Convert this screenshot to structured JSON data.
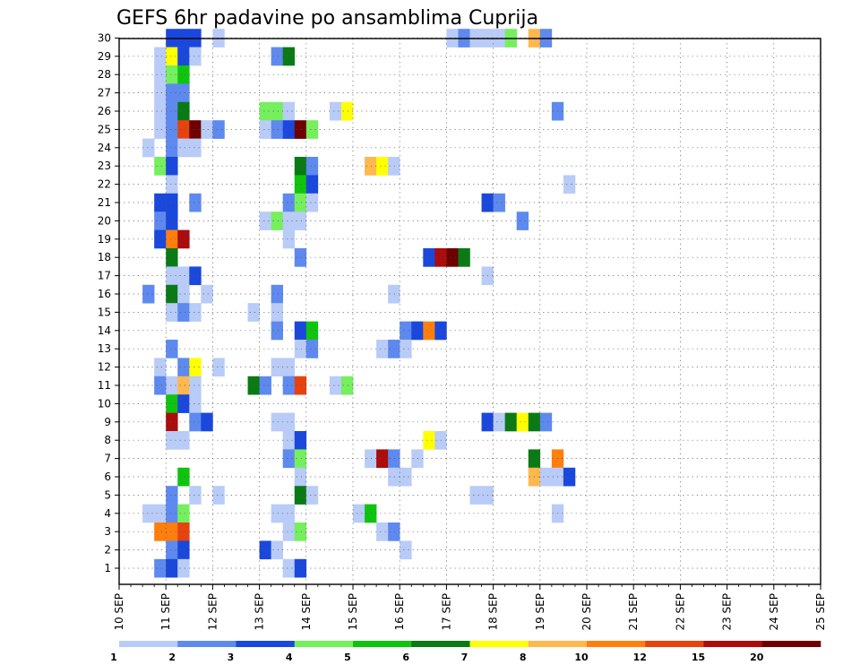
{
  "chart_data": {
    "type": "heatmap",
    "title": "GEFS 6hr padavine po ansamblima Cuprija",
    "x_start": "10 SEP",
    "x_ticks": [
      "10 SEP",
      "11 SEP",
      "12 SEP",
      "13 SEP",
      "14 SEP",
      "15 SEP",
      "16 SEP",
      "17 SEP",
      "18 SEP",
      "19 SEP",
      "20 SEP",
      "21 SEP",
      "22 SEP",
      "23 SEP",
      "24 SEP",
      "25 SEP"
    ],
    "x_step_hours": 6,
    "y_members": [
      1,
      2,
      3,
      4,
      5,
      6,
      7,
      8,
      9,
      10,
      11,
      12,
      13,
      14,
      15,
      16,
      17,
      18,
      19,
      20,
      21,
      22,
      23,
      24,
      25,
      26,
      27,
      28,
      29,
      30
    ],
    "y_ticks": [
      1,
      2,
      3,
      4,
      5,
      6,
      7,
      8,
      9,
      10,
      11,
      12,
      13,
      14,
      15,
      16,
      17,
      18,
      19,
      20,
      21,
      22,
      23,
      24,
      25,
      26,
      27,
      28,
      29,
      30
    ],
    "grid": true,
    "colorbar": {
      "thresholds": [
        "1",
        "2",
        "3",
        "4",
        "5",
        "6",
        "7",
        "8",
        "10",
        "12",
        "15",
        "20"
      ],
      "colors": [
        "#b9cbf7",
        "#5e89ef",
        "#1a48dc",
        "#75ef5e",
        "#0fc40f",
        "#0a7a15",
        "#ffff00",
        "#ffb84d",
        "#ff7f0e",
        "#e8420f",
        "#ab0c0c",
        "#6e0000"
      ],
      "placement": "bottom"
    },
    "cells": [
      [
        0,
        30,
        4,
        2
      ],
      [
        0,
        30,
        5,
        2
      ],
      [
        0,
        30,
        6,
        2
      ],
      [
        0,
        30,
        8,
        0
      ],
      [
        0,
        30,
        28,
        0
      ],
      [
        0,
        30,
        29,
        1
      ],
      [
        0,
        30,
        30,
        0
      ],
      [
        0,
        30,
        31,
        0
      ],
      [
        0,
        30,
        32,
        0
      ],
      [
        0,
        30,
        33,
        3
      ],
      [
        0,
        30,
        35,
        7
      ],
      [
        0,
        30,
        36,
        1
      ],
      [
        0,
        29,
        3,
        0
      ],
      [
        0,
        29,
        4,
        6
      ],
      [
        0,
        29,
        5,
        2
      ],
      [
        0,
        29,
        6,
        0
      ],
      [
        0,
        29,
        13,
        1
      ],
      [
        0,
        29,
        14,
        5
      ],
      [
        0,
        28,
        3,
        0
      ],
      [
        0,
        28,
        4,
        3
      ],
      [
        0,
        28,
        5,
        4
      ],
      [
        0,
        27,
        3,
        0
      ],
      [
        0,
        27,
        4,
        1
      ],
      [
        0,
        27,
        5,
        1
      ],
      [
        0,
        26,
        3,
        0
      ],
      [
        0,
        26,
        4,
        1
      ],
      [
        0,
        26,
        5,
        5
      ],
      [
        0,
        26,
        12,
        3
      ],
      [
        0,
        26,
        13,
        3
      ],
      [
        0,
        26,
        14,
        0
      ],
      [
        0,
        26,
        18,
        0
      ],
      [
        0,
        26,
        19,
        6
      ],
      [
        0,
        26,
        37,
        1
      ],
      [
        0,
        25,
        3,
        0
      ],
      [
        0,
        25,
        4,
        1
      ],
      [
        0,
        25,
        5,
        9
      ],
      [
        0,
        25,
        6,
        11
      ],
      [
        0,
        25,
        7,
        0
      ],
      [
        0,
        25,
        8,
        1
      ],
      [
        0,
        25,
        12,
        0
      ],
      [
        0,
        25,
        13,
        1
      ],
      [
        0,
        25,
        14,
        2
      ],
      [
        0,
        25,
        15,
        11
      ],
      [
        0,
        25,
        16,
        3
      ],
      [
        0,
        24,
        2,
        0
      ],
      [
        0,
        24,
        4,
        1
      ],
      [
        0,
        24,
        5,
        0
      ],
      [
        0,
        24,
        6,
        0
      ],
      [
        0,
        23,
        3,
        3
      ],
      [
        0,
        23,
        4,
        2
      ],
      [
        0,
        23,
        15,
        5
      ],
      [
        0,
        23,
        16,
        1
      ],
      [
        0,
        23,
        21,
        7
      ],
      [
        0,
        23,
        22,
        6
      ],
      [
        0,
        23,
        23,
        0
      ],
      [
        0,
        22,
        4,
        0
      ],
      [
        0,
        22,
        15,
        4
      ],
      [
        0,
        22,
        16,
        2
      ],
      [
        0,
        22,
        38,
        0
      ],
      [
        0,
        21,
        3,
        2
      ],
      [
        0,
        21,
        4,
        2
      ],
      [
        0,
        21,
        6,
        1
      ],
      [
        0,
        21,
        14,
        1
      ],
      [
        0,
        21,
        15,
        3
      ],
      [
        0,
        21,
        16,
        0
      ],
      [
        0,
        21,
        31,
        2
      ],
      [
        0,
        21,
        32,
        1
      ],
      [
        0,
        20,
        3,
        1
      ],
      [
        0,
        20,
        4,
        2
      ],
      [
        0,
        20,
        12,
        0
      ],
      [
        0,
        20,
        13,
        3
      ],
      [
        0,
        20,
        14,
        0
      ],
      [
        0,
        20,
        15,
        0
      ],
      [
        0,
        20,
        34,
        1
      ],
      [
        0,
        19,
        3,
        2
      ],
      [
        0,
        19,
        4,
        8
      ],
      [
        0,
        19,
        5,
        10
      ],
      [
        0,
        19,
        14,
        0
      ],
      [
        0,
        18,
        4,
        5
      ],
      [
        0,
        18,
        15,
        1
      ],
      [
        0,
        18,
        26,
        2
      ],
      [
        0,
        18,
        27,
        10
      ],
      [
        0,
        18,
        28,
        11
      ],
      [
        0,
        18,
        29,
        5
      ],
      [
        0,
        17,
        4,
        0
      ],
      [
        0,
        17,
        5,
        0
      ],
      [
        0,
        17,
        6,
        2
      ],
      [
        0,
        17,
        31,
        0
      ],
      [
        0,
        16,
        2,
        1
      ],
      [
        0,
        16,
        4,
        5
      ],
      [
        0,
        16,
        5,
        0
      ],
      [
        0,
        16,
        7,
        0
      ],
      [
        0,
        16,
        13,
        1
      ],
      [
        0,
        16,
        23,
        0
      ],
      [
        0,
        15,
        4,
        0
      ],
      [
        0,
        15,
        5,
        1
      ],
      [
        0,
        15,
        6,
        0
      ],
      [
        0,
        15,
        11,
        0
      ],
      [
        0,
        15,
        13,
        0
      ],
      [
        0,
        14,
        13,
        1
      ],
      [
        0,
        14,
        15,
        2
      ],
      [
        0,
        14,
        16,
        4
      ],
      [
        0,
        14,
        24,
        1
      ],
      [
        0,
        14,
        25,
        2
      ],
      [
        0,
        14,
        26,
        8
      ],
      [
        0,
        14,
        27,
        2
      ],
      [
        0,
        13,
        4,
        1
      ],
      [
        0,
        13,
        15,
        0
      ],
      [
        0,
        13,
        16,
        1
      ],
      [
        0,
        13,
        22,
        0
      ],
      [
        0,
        13,
        23,
        1
      ],
      [
        0,
        13,
        24,
        0
      ],
      [
        0,
        12,
        3,
        0
      ],
      [
        0,
        12,
        5,
        1
      ],
      [
        0,
        12,
        6,
        6
      ],
      [
        0,
        12,
        8,
        0
      ],
      [
        0,
        12,
        13,
        0
      ],
      [
        0,
        12,
        14,
        0
      ],
      [
        0,
        11,
        3,
        1
      ],
      [
        0,
        11,
        4,
        0
      ],
      [
        0,
        11,
        5,
        7
      ],
      [
        0,
        11,
        6,
        0
      ],
      [
        0,
        11,
        11,
        5
      ],
      [
        0,
        11,
        12,
        1
      ],
      [
        0,
        11,
        14,
        1
      ],
      [
        0,
        11,
        15,
        9
      ],
      [
        0,
        11,
        18,
        0
      ],
      [
        0,
        11,
        19,
        3
      ],
      [
        0,
        10,
        4,
        4
      ],
      [
        0,
        10,
        5,
        2
      ],
      [
        0,
        10,
        6,
        0
      ],
      [
        0,
        9,
        4,
        10
      ],
      [
        0,
        9,
        6,
        1
      ],
      [
        0,
        9,
        7,
        2
      ],
      [
        0,
        9,
        13,
        0
      ],
      [
        0,
        9,
        14,
        0
      ],
      [
        0,
        9,
        31,
        2
      ],
      [
        0,
        9,
        32,
        0
      ],
      [
        0,
        9,
        33,
        5
      ],
      [
        0,
        9,
        34,
        6
      ],
      [
        0,
        9,
        35,
        5
      ],
      [
        0,
        9,
        36,
        1
      ],
      [
        0,
        8,
        4,
        0
      ],
      [
        0,
        8,
        5,
        0
      ],
      [
        0,
        8,
        14,
        0
      ],
      [
        0,
        8,
        15,
        2
      ],
      [
        0,
        8,
        26,
        6
      ],
      [
        0,
        8,
        27,
        0
      ],
      [
        0,
        7,
        14,
        1
      ],
      [
        0,
        7,
        15,
        3
      ],
      [
        0,
        7,
        21,
        0
      ],
      [
        0,
        7,
        22,
        10
      ],
      [
        0,
        7,
        23,
        1
      ],
      [
        0,
        7,
        25,
        0
      ],
      [
        0,
        7,
        35,
        5
      ],
      [
        0,
        7,
        37,
        8
      ],
      [
        0,
        6,
        5,
        4
      ],
      [
        0,
        6,
        15,
        0
      ],
      [
        0,
        6,
        23,
        0
      ],
      [
        0,
        6,
        24,
        0
      ],
      [
        0,
        6,
        35,
        7
      ],
      [
        0,
        6,
        36,
        0
      ],
      [
        0,
        6,
        37,
        0
      ],
      [
        0,
        6,
        38,
        2
      ],
      [
        0,
        5,
        4,
        1
      ],
      [
        0,
        5,
        6,
        0
      ],
      [
        0,
        5,
        8,
        0
      ],
      [
        0,
        5,
        15,
        5
      ],
      [
        0,
        5,
        16,
        0
      ],
      [
        0,
        5,
        30,
        0
      ],
      [
        0,
        5,
        31,
        0
      ],
      [
        0,
        4,
        2,
        0
      ],
      [
        0,
        4,
        3,
        0
      ],
      [
        0,
        4,
        4,
        1
      ],
      [
        0,
        4,
        5,
        3
      ],
      [
        0,
        4,
        13,
        0
      ],
      [
        0,
        4,
        14,
        0
      ],
      [
        0,
        4,
        20,
        0
      ],
      [
        0,
        4,
        21,
        4
      ],
      [
        0,
        4,
        37,
        0
      ],
      [
        0,
        3,
        3,
        8
      ],
      [
        0,
        3,
        4,
        8
      ],
      [
        0,
        3,
        5,
        9
      ],
      [
        0,
        3,
        14,
        0
      ],
      [
        0,
        3,
        15,
        3
      ],
      [
        0,
        3,
        22,
        0
      ],
      [
        0,
        3,
        23,
        1
      ],
      [
        0,
        2,
        4,
        1
      ],
      [
        0,
        2,
        5,
        2
      ],
      [
        0,
        2,
        12,
        2
      ],
      [
        0,
        2,
        13,
        0
      ],
      [
        0,
        2,
        24,
        0
      ],
      [
        0,
        1,
        3,
        1
      ],
      [
        0,
        1,
        4,
        2
      ],
      [
        0,
        1,
        5,
        0
      ],
      [
        0,
        1,
        14,
        0
      ],
      [
        0,
        1,
        15,
        2
      ]
    ]
  }
}
